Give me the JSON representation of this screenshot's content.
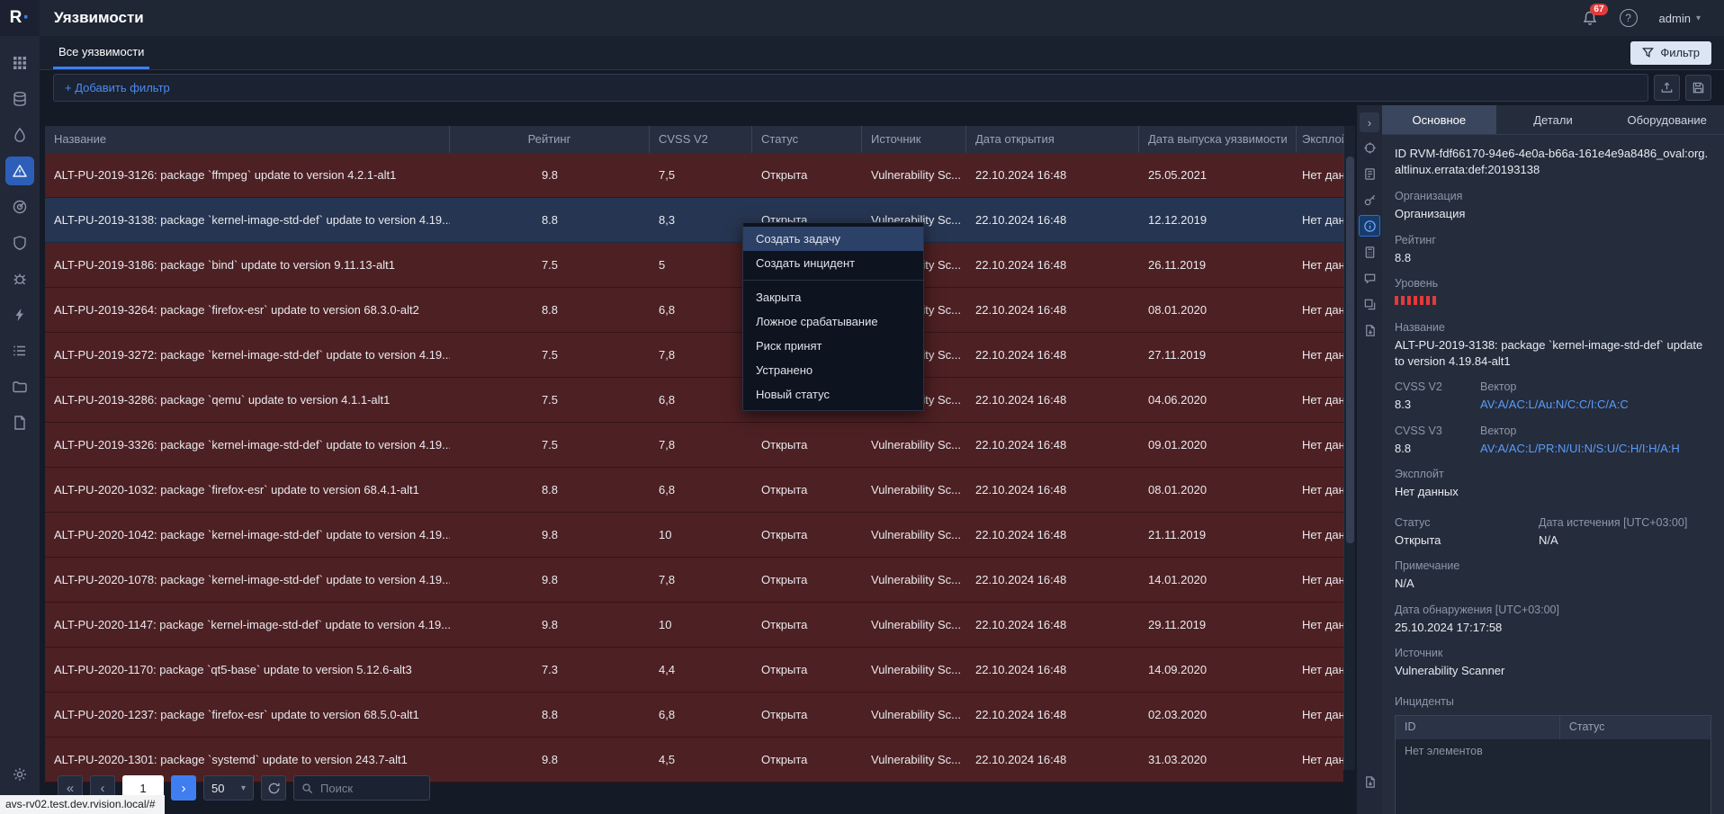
{
  "app": {
    "logo_letter": "R",
    "status_link": "avs-rv02.test.dev.rvision.local/#"
  },
  "header": {
    "title": "Уязвимости",
    "notification_badge": "67",
    "user_name": "admin"
  },
  "tab_bar": {
    "active_tab": "Все уязвимости",
    "filter_button": "Фильтр"
  },
  "filter_bar": {
    "add_filter_label": "+ Добавить фильтр"
  },
  "vuln_table": {
    "columns": [
      "Название",
      "Рейтинг",
      "CVSS V2",
      "Статус",
      "Источник",
      "Дата открытия",
      "Дата выпуска уязвимости",
      "Эксплой..."
    ],
    "rows": [
      {
        "name": "ALT-PU-2019-3126: package `ffmpeg` update to version 4.2.1-alt1",
        "rating": "9.8",
        "cvss2": "7,5",
        "status": "Открыта",
        "source": "Vulnerability Sc...",
        "open_date": "22.10.2024 16:48",
        "release_date": "25.05.2021",
        "exploit": "Нет дан...",
        "selected": false
      },
      {
        "name": "ALT-PU-2019-3138: package `kernel-image-std-def` update to version 4.19...",
        "rating": "8.8",
        "cvss2": "8,3",
        "status": "Открыта",
        "source": "Vulnerability Sc...",
        "open_date": "22.10.2024 16:48",
        "release_date": "12.12.2019",
        "exploit": "Нет дан...",
        "selected": true
      },
      {
        "name": "ALT-PU-2019-3186: package `bind` update to version 9.11.13-alt1",
        "rating": "7.5",
        "cvss2": "5",
        "status": "Открыта",
        "source": "Vulnerability Sc...",
        "open_date": "22.10.2024 16:48",
        "release_date": "26.11.2019",
        "exploit": "Нет дан...",
        "selected": false
      },
      {
        "name": "ALT-PU-2019-3264: package `firefox-esr` update to version 68.3.0-alt2",
        "rating": "8.8",
        "cvss2": "6,8",
        "status": "Открыта",
        "source": "Vulnerability Sc...",
        "open_date": "22.10.2024 16:48",
        "release_date": "08.01.2020",
        "exploit": "Нет дан...",
        "selected": false
      },
      {
        "name": "ALT-PU-2019-3272: package `kernel-image-std-def` update to version 4.19...",
        "rating": "7.5",
        "cvss2": "7,8",
        "status": "Открыта",
        "source": "Vulnerability Sc...",
        "open_date": "22.10.2024 16:48",
        "release_date": "27.11.2019",
        "exploit": "Нет дан...",
        "selected": false
      },
      {
        "name": "ALT-PU-2019-3286: package `qemu` update to version 4.1.1-alt1",
        "rating": "7.5",
        "cvss2": "6,8",
        "status": "Открыта",
        "source": "Vulnerability Sc...",
        "open_date": "22.10.2024 16:48",
        "release_date": "04.06.2020",
        "exploit": "Нет дан...",
        "selected": false
      },
      {
        "name": "ALT-PU-2019-3326: package `kernel-image-std-def` update to version 4.19...",
        "rating": "7.5",
        "cvss2": "7,8",
        "status": "Открыта",
        "source": "Vulnerability Sc...",
        "open_date": "22.10.2024 16:48",
        "release_date": "09.01.2020",
        "exploit": "Нет дан...",
        "selected": false
      },
      {
        "name": "ALT-PU-2020-1032: package `firefox-esr` update to version 68.4.1-alt1",
        "rating": "8.8",
        "cvss2": "6,8",
        "status": "Открыта",
        "source": "Vulnerability Sc...",
        "open_date": "22.10.2024 16:48",
        "release_date": "08.01.2020",
        "exploit": "Нет дан...",
        "selected": false
      },
      {
        "name": "ALT-PU-2020-1042: package `kernel-image-std-def` update to version 4.19...",
        "rating": "9.8",
        "cvss2": "10",
        "status": "Открыта",
        "source": "Vulnerability Sc...",
        "open_date": "22.10.2024 16:48",
        "release_date": "21.11.2019",
        "exploit": "Нет дан...",
        "selected": false
      },
      {
        "name": "ALT-PU-2020-1078: package `kernel-image-std-def` update to version 4.19...",
        "rating": "9.8",
        "cvss2": "7,8",
        "status": "Открыта",
        "source": "Vulnerability Sc...",
        "open_date": "22.10.2024 16:48",
        "release_date": "14.01.2020",
        "exploit": "Нет дан...",
        "selected": false
      },
      {
        "name": "ALT-PU-2020-1147: package `kernel-image-std-def` update to version 4.19...",
        "rating": "9.8",
        "cvss2": "10",
        "status": "Открыта",
        "source": "Vulnerability Sc...",
        "open_date": "22.10.2024 16:48",
        "release_date": "29.11.2019",
        "exploit": "Нет дан...",
        "selected": false
      },
      {
        "name": "ALT-PU-2020-1170: package `qt5-base` update to version 5.12.6-alt3",
        "rating": "7.3",
        "cvss2": "4,4",
        "status": "Открыта",
        "source": "Vulnerability Sc...",
        "open_date": "22.10.2024 16:48",
        "release_date": "14.09.2020",
        "exploit": "Нет дан...",
        "selected": false
      },
      {
        "name": "ALT-PU-2020-1237: package `firefox-esr` update to version 68.5.0-alt1",
        "rating": "8.8",
        "cvss2": "6,8",
        "status": "Открыта",
        "source": "Vulnerability Sc...",
        "open_date": "22.10.2024 16:48",
        "release_date": "02.03.2020",
        "exploit": "Нет дан...",
        "selected": false
      },
      {
        "name": "ALT-PU-2020-1301: package `systemd` update to version 243.7-alt1",
        "rating": "9.8",
        "cvss2": "4,5",
        "status": "Открыта",
        "source": "Vulnerability Sc...",
        "open_date": "22.10.2024 16:48",
        "release_date": "31.03.2020",
        "exploit": "Нет дан...",
        "selected": false
      }
    ]
  },
  "context_menu": {
    "items": [
      {
        "label": "Создать задачу",
        "highlighted": true
      },
      {
        "label": "Создать инцидент"
      },
      {
        "divider": true
      },
      {
        "label": "Закрыта"
      },
      {
        "label": "Ложное срабатывание"
      },
      {
        "label": "Риск принят"
      },
      {
        "label": "Устранено"
      },
      {
        "label": "Новый статус"
      }
    ]
  },
  "pagination": {
    "page": "1",
    "page_size": "50",
    "search_placeholder": "Поиск"
  },
  "details": {
    "tabs": [
      "Основное",
      "Детали",
      "Оборудование"
    ],
    "id_label": "ID",
    "id_value": "RVM-fdf66170-94e6-4e0a-b66a-161e4e9a8486_oval:org.altlinux.errata:def:20193138",
    "org_label": "Организация",
    "org_value": "Организация",
    "rating_label": "Рейтинг",
    "rating_value": "8.8",
    "level_label": "Уровень",
    "level_bars": 7,
    "name_label": "Название",
    "name_value": "ALT-PU-2019-3138: package `kernel-image-std-def` update to version 4.19.84-alt1",
    "cvss2_label": "CVSS V2",
    "cvss2_value": "8.3",
    "vector_label": "Вектор",
    "cvss2_vector": "AV:A/AC:L/Au:N/C:C/I:C/A:C",
    "cvss3_label": "CVSS V3",
    "cvss3_value": "8.8",
    "cvss3_vector": "AV:A/AC:L/PR:N/UI:N/S:U/C:H/I:H/A:H",
    "exploit_label": "Эксплойт",
    "exploit_value": "Нет данных",
    "status_label": "Статус",
    "status_value": "Открыта",
    "expiry_label": "Дата истечения [UTC+03:00]",
    "expiry_value": "N/A",
    "note_label": "Примечание",
    "note_value": "N/A",
    "detect_label": "Дата обнаружения [UTC+03:00]",
    "detect_value": "25.10.2024 17:17:58",
    "source_label": "Источник",
    "source_value": "Vulnerability Scanner",
    "incidents_label": "Инциденты",
    "incidents_columns": [
      "ID",
      "Статус"
    ],
    "incidents_empty": "Нет элементов"
  },
  "colors": {
    "accent_blue": "#3f7ef0",
    "link_blue": "#5a9cf8",
    "row_red": "#4d2023",
    "selected_row_blue": "#263551",
    "critical_red": "#e23b3b",
    "badge_red": "#e23b3b"
  }
}
